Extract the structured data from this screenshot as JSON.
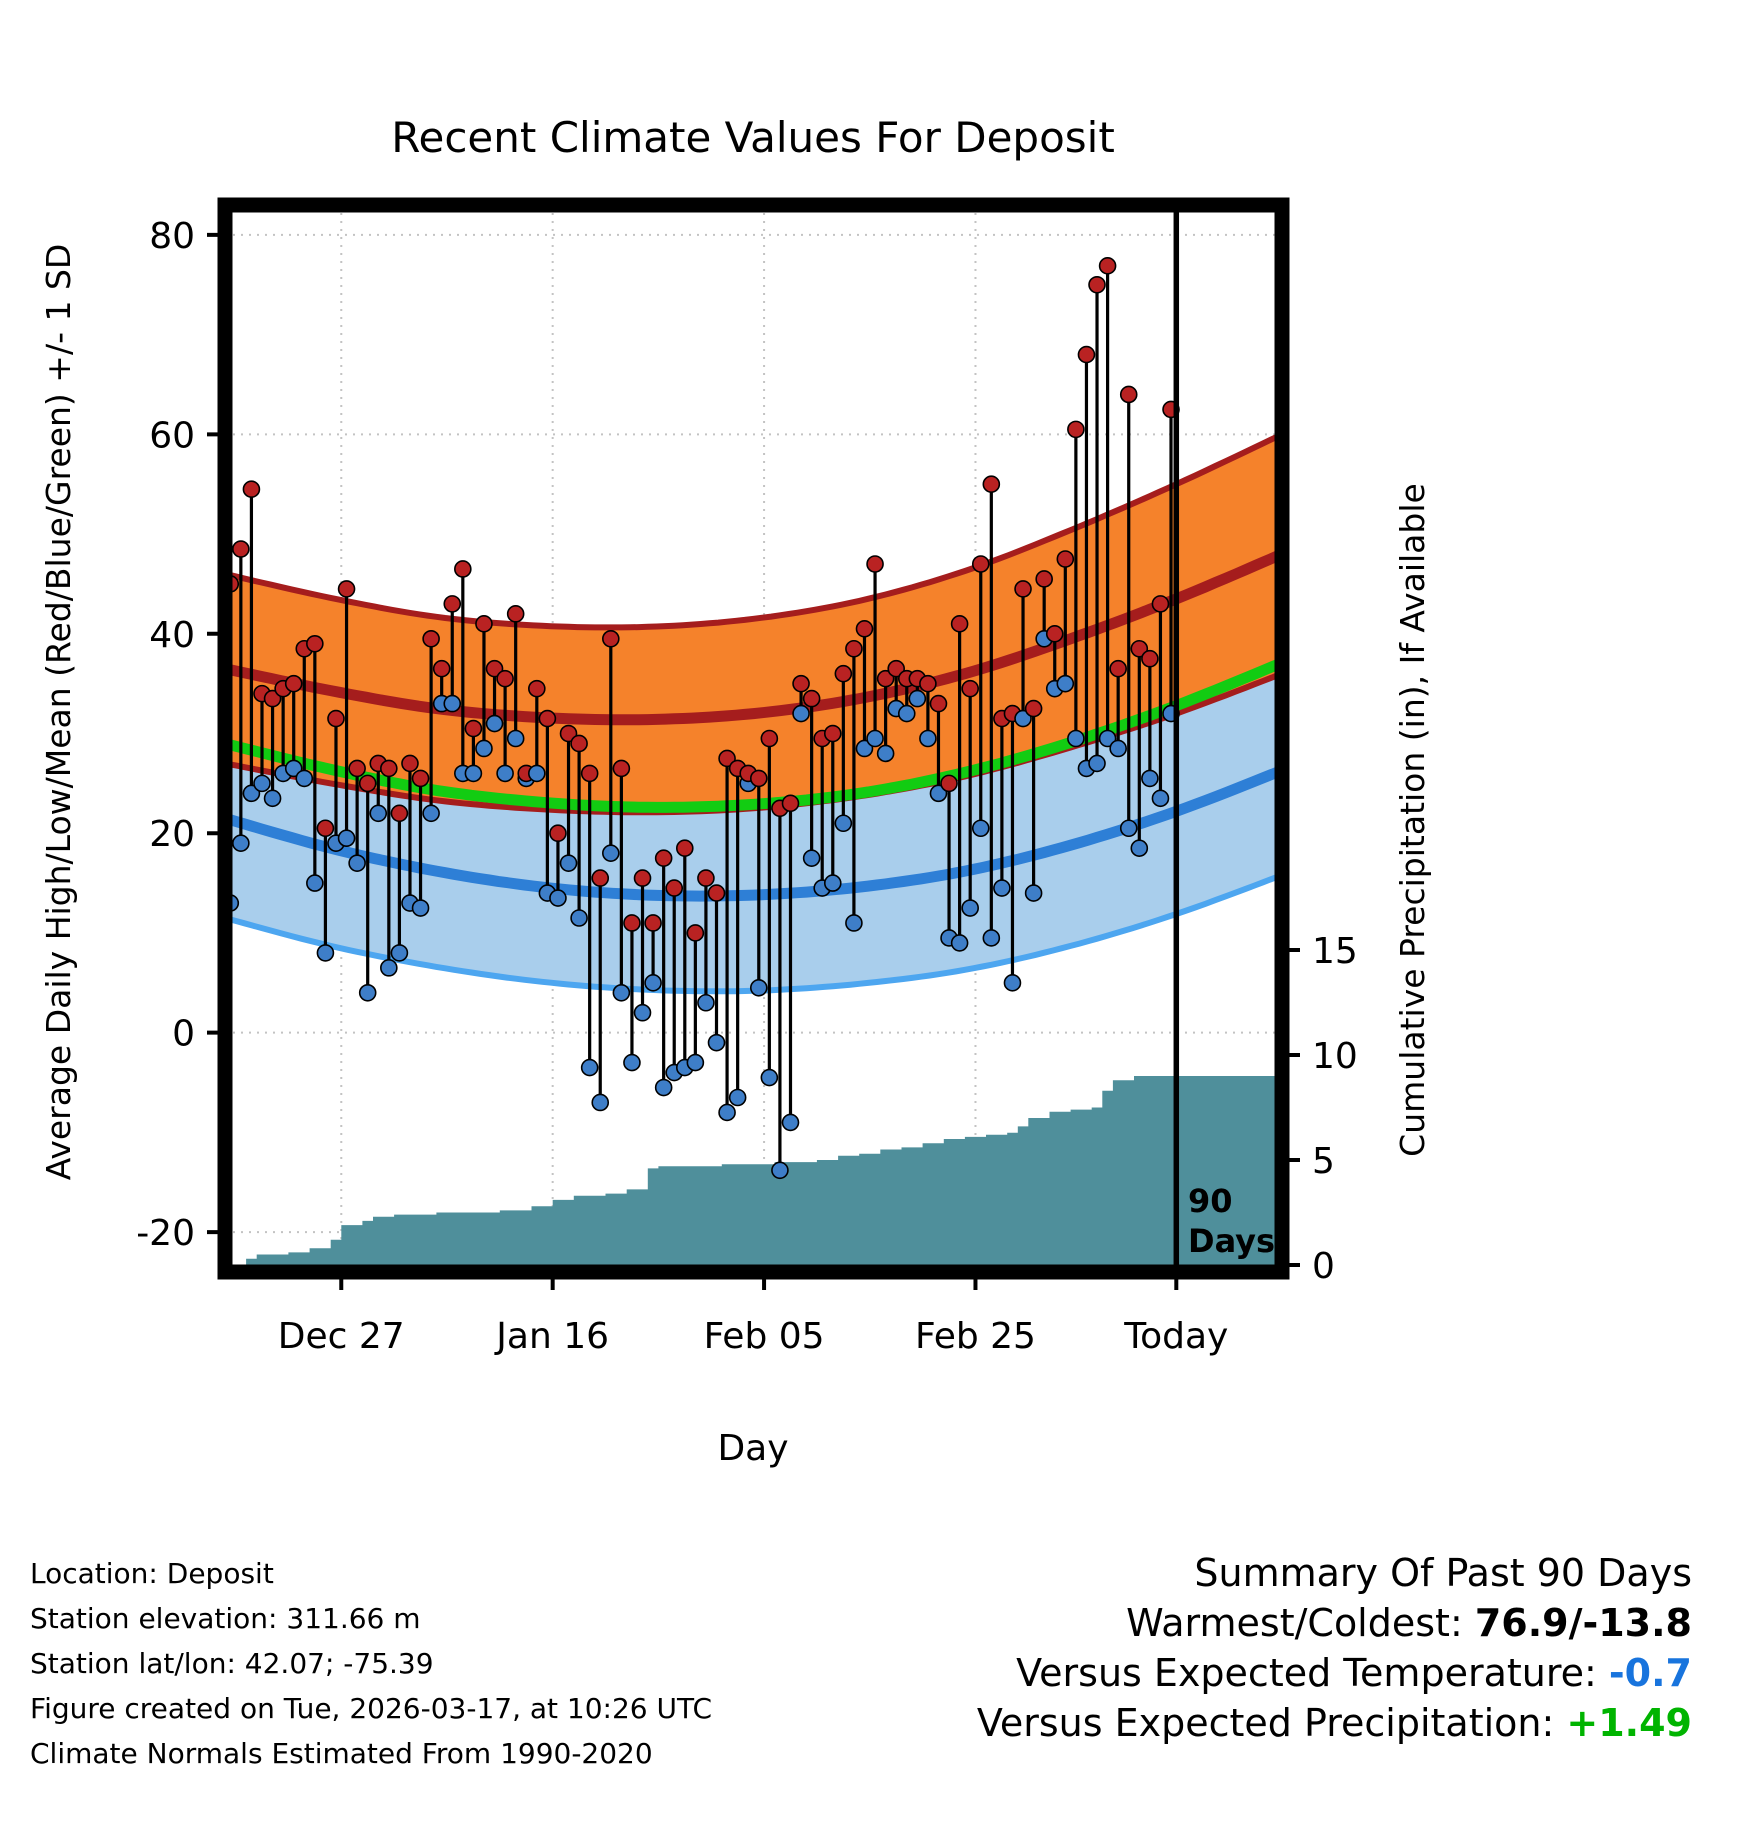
{
  "chart_data": {
    "type": "line",
    "subtype": "climate normals bands + daily high/low stems + cumulative precipitation area",
    "title": "Recent Climate Values For Deposit",
    "xlabel": "Day",
    "ylabel_left": "Average Daily High/Low/Mean (Red/Blue/Green) +/- 1 SD",
    "ylabel_right": "Cumulative Precipitation (in), If Available",
    "x_axis": {
      "range_days": [
        0,
        100
      ],
      "ticks": [
        {
          "day": 11,
          "label": "Dec 27"
        },
        {
          "day": 31,
          "label": "Jan 16"
        },
        {
          "day": 51,
          "label": "Feb 05"
        },
        {
          "day": 71,
          "label": "Feb 25"
        },
        {
          "day": 90,
          "label": "Today"
        }
      ]
    },
    "y_axis_left": {
      "range": [
        -24,
        83
      ],
      "ticks": [
        -20,
        0,
        20,
        40,
        60,
        80
      ]
    },
    "y_axis_right": {
      "range": [
        0,
        50
      ],
      "ticks": [
        0,
        5,
        10,
        15
      ]
    },
    "grid": true,
    "legend": "none",
    "normals": {
      "days": [
        0,
        10,
        20,
        30,
        40,
        50,
        60,
        70,
        80,
        90,
        100
      ],
      "high_mean": [
        36.5,
        34.3,
        32.5,
        31.6,
        31.4,
        32.0,
        33.5,
        36.0,
        39.5,
        43.5,
        48.0
      ],
      "high_sd": [
        9.5,
        9.3,
        9.2,
        9.2,
        9.3,
        9.5,
        9.8,
        10.3,
        10.9,
        11.5,
        12.0
      ],
      "low_mean": [
        21.5,
        18.5,
        16.2,
        14.6,
        13.8,
        13.8,
        14.6,
        16.2,
        18.8,
        22.2,
        26.3
      ],
      "low_sd": [
        10.0,
        9.8,
        9.6,
        9.5,
        9.5,
        9.6,
        9.7,
        9.9,
        10.1,
        10.3,
        10.5
      ],
      "mean": [
        29.0,
        26.4,
        24.3,
        23.1,
        22.6,
        22.9,
        24.0,
        26.1,
        29.1,
        32.8,
        37.1
      ]
    },
    "daily": {
      "first_day": 0.5,
      "day_step": 1,
      "high": [
        45,
        48.5,
        54.5,
        34,
        33.5,
        34.5,
        35,
        38.5,
        39,
        20.5,
        31.5,
        44.5,
        26.5,
        25,
        27,
        26.5,
        22,
        27,
        25.5,
        39.5,
        36.5,
        43,
        46.5,
        30.5,
        41,
        36.5,
        35.5,
        42,
        26,
        34.5,
        31.5,
        20,
        30,
        29,
        26,
        15.5,
        39.5,
        26.5,
        11,
        15.5,
        11,
        17.5,
        14.5,
        18.5,
        10,
        15.5,
        14,
        27.5,
        26.5,
        26,
        25.5,
        29.5,
        22.5,
        23,
        35,
        33.5,
        29.5,
        30,
        36,
        38.5,
        40.5,
        47,
        35.5,
        36.5,
        35.5,
        35.5,
        35,
        33,
        25,
        41,
        34.5,
        47,
        55,
        31.5,
        32,
        44.5,
        32.5,
        45.5,
        40,
        47.5,
        60.5,
        68,
        75,
        76.9,
        36.5,
        64,
        38.5,
        37.5,
        43,
        62.5
      ],
      "low": [
        13,
        19,
        24,
        25,
        23.5,
        26,
        26.5,
        25.5,
        15,
        8,
        19,
        19.5,
        17,
        4,
        22,
        6.5,
        8,
        13,
        12.5,
        22,
        33,
        33,
        26,
        26,
        28.5,
        31,
        26,
        29.5,
        25.5,
        26,
        14,
        13.5,
        17,
        11.5,
        -3.5,
        -7,
        18,
        4,
        -3,
        2,
        5,
        -5.5,
        -4,
        -3.5,
        -3,
        3,
        -1,
        -8,
        -6.5,
        25,
        4.5,
        -4.5,
        -13.8,
        -9,
        32,
        17.5,
        14.5,
        15,
        21,
        11,
        28.5,
        29.5,
        28,
        32.5,
        32,
        33.5,
        29.5,
        24,
        9.5,
        9,
        12.5,
        20.5,
        9.5,
        14.5,
        5,
        31.5,
        14,
        39.5,
        34.5,
        35,
        29.5,
        26.5,
        27,
        29.5,
        28.5,
        20.5,
        18.5,
        25.5,
        23.5,
        32
      ]
    },
    "precip_cumulative": {
      "days": [
        0,
        2,
        3,
        6,
        8,
        10,
        11,
        13,
        14,
        16,
        20,
        26,
        29,
        31,
        33,
        36,
        38,
        40,
        41,
        47,
        52,
        56,
        58,
        60,
        62,
        64,
        66,
        68,
        70,
        72,
        74,
        75,
        76,
        78,
        80,
        82,
        83,
        84,
        86,
        90,
        100
      ],
      "values": [
        0,
        0.3,
        0.5,
        0.6,
        0.8,
        1.2,
        1.9,
        2.1,
        2.3,
        2.4,
        2.5,
        2.6,
        2.8,
        3.1,
        3.3,
        3.4,
        3.6,
        4.6,
        4.7,
        4.8,
        4.9,
        5.0,
        5.2,
        5.3,
        5.5,
        5.6,
        5.8,
        6.0,
        6.1,
        6.2,
        6.3,
        6.6,
        7.0,
        7.3,
        7.4,
        7.5,
        8.3,
        8.8,
        9.0,
        9.0,
        9.0
      ]
    },
    "marker_line": {
      "day": 90,
      "label_line1": "90",
      "label_line2": "Days"
    },
    "colors": {
      "high_band_fill": "#F5822B",
      "high_band_edge": "#A51D1D",
      "high_mean_line": "#A51D1D",
      "high_dot": "#B92222",
      "low_band_fill": "#A9CEEC",
      "low_band_edge": "#4DA6F0",
      "low_mean_line": "#2E7FD6",
      "low_dot": "#3E7EC8",
      "mean_line": "#12CC12",
      "precip_fill": "#4F8F9B",
      "stem": "#000000"
    }
  },
  "footer": {
    "lines": [
      "Location: Deposit",
      "Station elevation: 311.66 m",
      "Station lat/lon: 42.07; -75.39",
      "Figure created on Tue, 2026-03-17, at 10:26 UTC",
      "Climate Normals Estimated From 1990-2020"
    ]
  },
  "summary": {
    "title": "Summary Of Past 90 Days",
    "warmest_coldest_label": "Warmest/Coldest: ",
    "warmest_coldest_value": "76.9/-13.8",
    "vs_temp_label": "Versus Expected Temperature: ",
    "vs_temp_value": "-0.7",
    "vs_precip_label": "Versus Expected Precipitation: ",
    "vs_precip_value": "+1.49",
    "temp_value_color": "#1874DD",
    "precip_value_color": "#00B400"
  }
}
